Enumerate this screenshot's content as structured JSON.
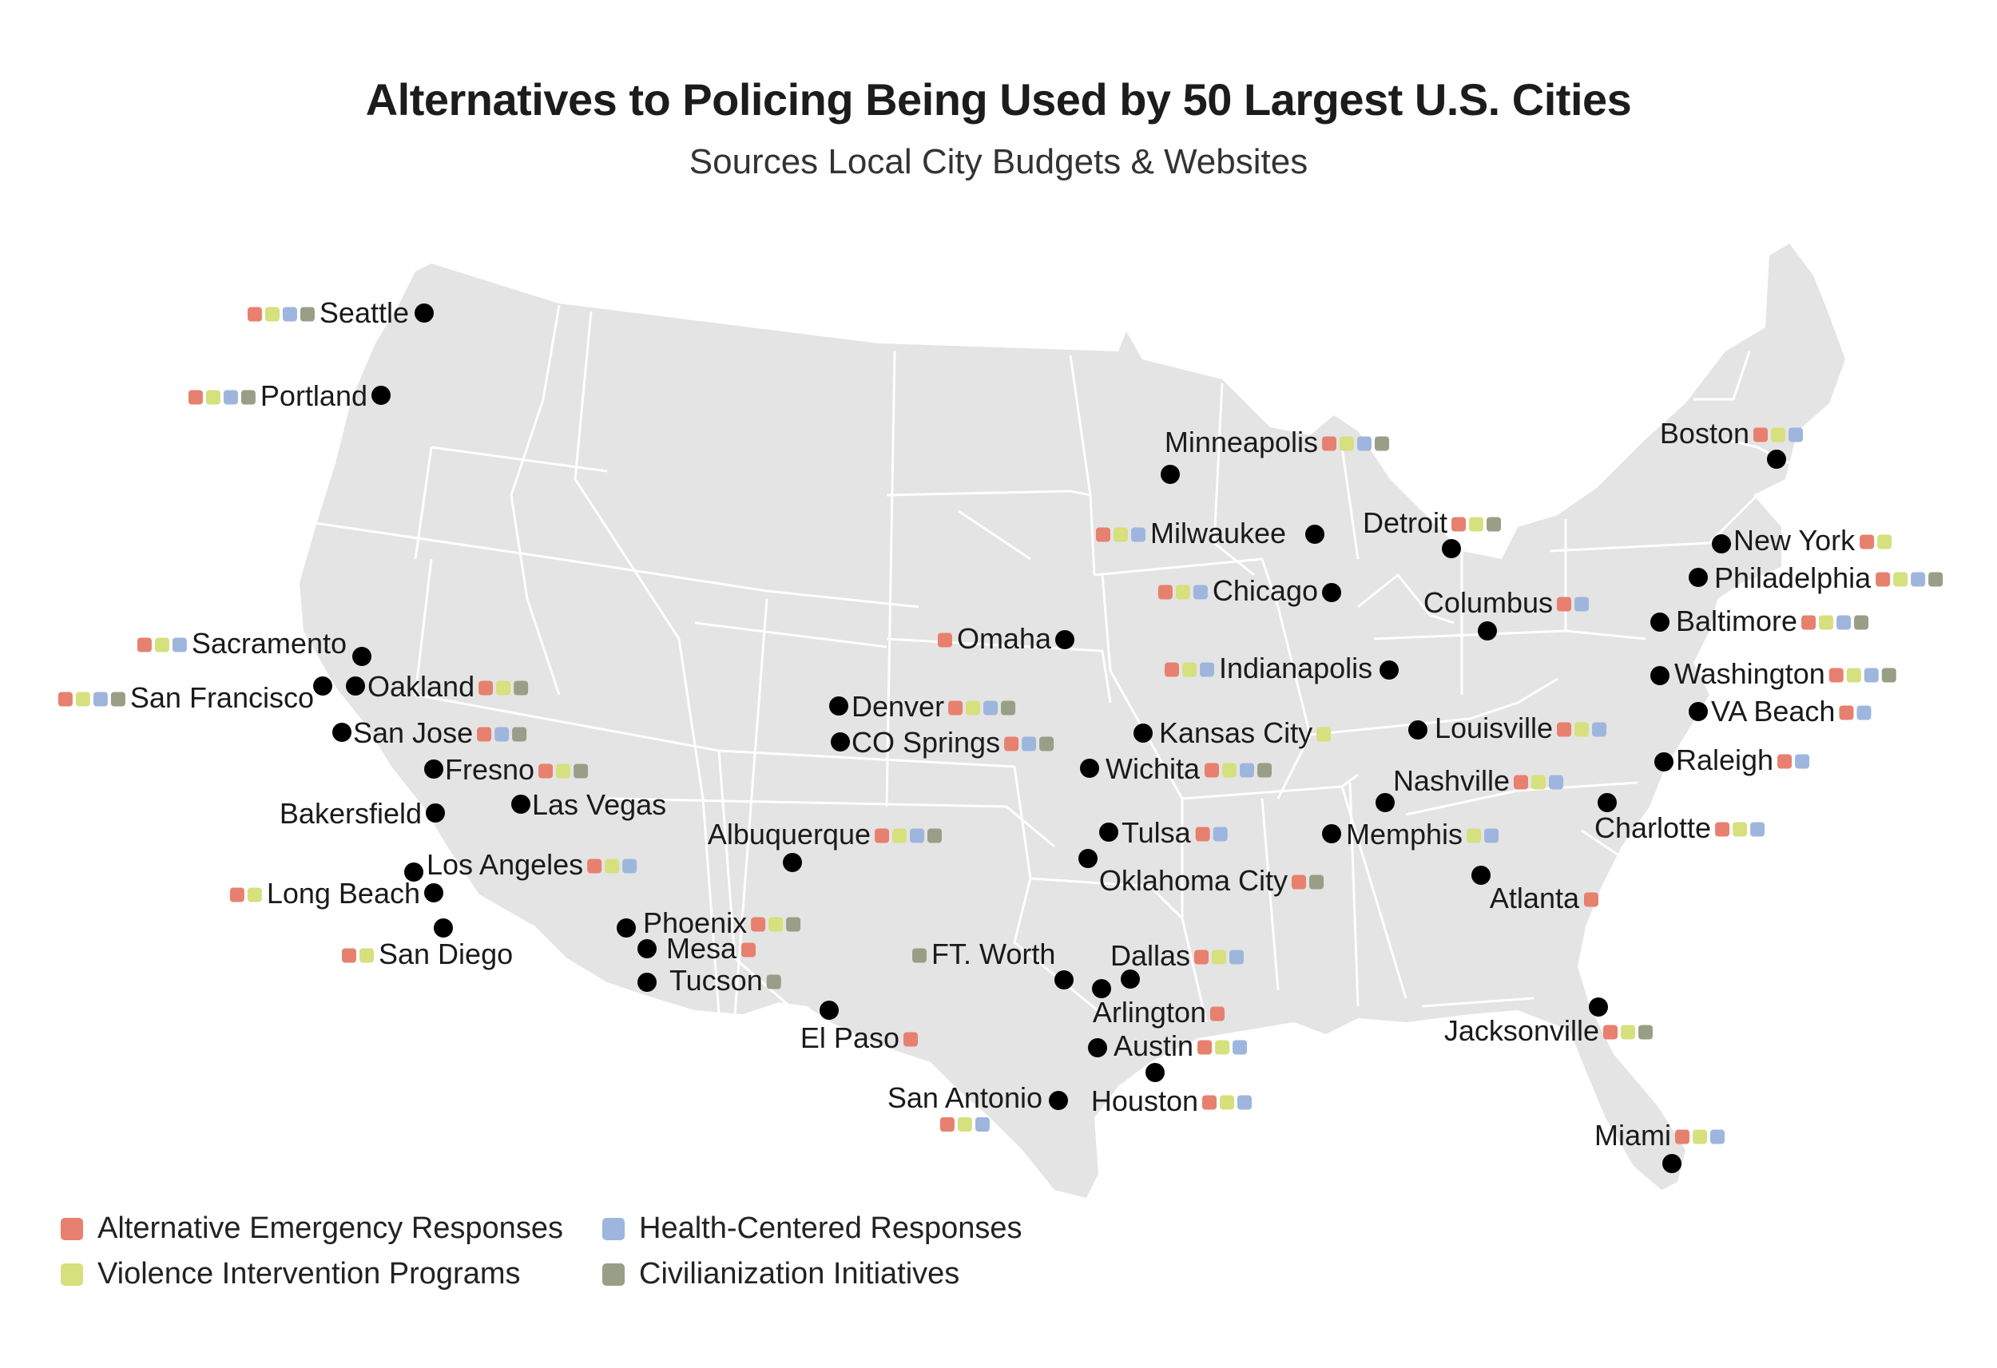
{
  "title": "Alternatives to Policing Being Used by 50 Largest U.S. Cities",
  "subtitle": "Sources Local City Budgets & Websites",
  "colors": {
    "AER": "#e8806f",
    "VIP": "#d6e07d",
    "HCR": "#9eb6de",
    "CIV": "#999e86",
    "land": "#e4e4e4",
    "border": "#ffffff",
    "dot": "#000000"
  },
  "legend": [
    {
      "key": "AER",
      "label": "Alternative Emergency Responses"
    },
    {
      "key": "VIP",
      "label": "Violence Intervention Programs"
    },
    {
      "key": "HCR",
      "label": "Health-Centered Responses"
    },
    {
      "key": "CIV",
      "label": "Civilianization Initiatives"
    }
  ],
  "cities": [
    {
      "name": "Seattle",
      "programs": [
        "AER",
        "VIP",
        "HCR",
        "CIV"
      ]
    },
    {
      "name": "Portland",
      "programs": [
        "AER",
        "VIP",
        "HCR",
        "CIV"
      ]
    },
    {
      "name": "Sacramento",
      "programs": [
        "AER",
        "VIP",
        "HCR"
      ]
    },
    {
      "name": "San Francisco",
      "programs": [
        "AER",
        "VIP",
        "HCR",
        "CIV"
      ]
    },
    {
      "name": "Oakland",
      "programs": [
        "AER",
        "VIP",
        "CIV"
      ]
    },
    {
      "name": "San Jose",
      "programs": [
        "AER",
        "HCR",
        "CIV"
      ]
    },
    {
      "name": "Fresno",
      "programs": [
        "AER",
        "VIP",
        "CIV"
      ]
    },
    {
      "name": "Bakersfield",
      "programs": []
    },
    {
      "name": "Las Vegas",
      "programs": []
    },
    {
      "name": "Los Angeles",
      "programs": [
        "AER",
        "VIP",
        "HCR"
      ]
    },
    {
      "name": "Long Beach",
      "programs": [
        "AER",
        "VIP"
      ]
    },
    {
      "name": "San Diego",
      "programs": [
        "AER",
        "VIP"
      ]
    },
    {
      "name": "Phoenix",
      "programs": [
        "AER",
        "VIP",
        "CIV"
      ]
    },
    {
      "name": "Mesa",
      "programs": [
        "AER"
      ]
    },
    {
      "name": "Tucson",
      "programs": [
        "CIV"
      ]
    },
    {
      "name": "Albuquerque",
      "programs": [
        "AER",
        "VIP",
        "HCR",
        "CIV"
      ]
    },
    {
      "name": "El Paso",
      "programs": [
        "AER"
      ]
    },
    {
      "name": "Denver",
      "programs": [
        "AER",
        "VIP",
        "HCR",
        "CIV"
      ]
    },
    {
      "name": "CO Springs",
      "programs": [
        "AER",
        "HCR",
        "CIV"
      ]
    },
    {
      "name": "Omaha",
      "programs": [
        "AER"
      ]
    },
    {
      "name": "Kansas City",
      "programs": [
        "VIP"
      ]
    },
    {
      "name": "Wichita",
      "programs": [
        "AER",
        "VIP",
        "HCR",
        "CIV"
      ]
    },
    {
      "name": "Tulsa",
      "programs": [
        "AER",
        "HCR"
      ]
    },
    {
      "name": "Oklahoma City",
      "programs": [
        "AER",
        "CIV"
      ]
    },
    {
      "name": "FT. Worth",
      "programs": [
        "CIV"
      ]
    },
    {
      "name": "Dallas",
      "programs": [
        "AER",
        "VIP",
        "HCR"
      ]
    },
    {
      "name": "Arlington",
      "programs": [
        "AER"
      ]
    },
    {
      "name": "Austin",
      "programs": [
        "AER",
        "VIP",
        "HCR"
      ]
    },
    {
      "name": "San Antonio",
      "programs": [
        "AER",
        "VIP",
        "HCR"
      ]
    },
    {
      "name": "Houston",
      "programs": [
        "AER",
        "VIP",
        "HCR"
      ]
    },
    {
      "name": "Minneapolis",
      "programs": [
        "AER",
        "VIP",
        "HCR",
        "CIV"
      ]
    },
    {
      "name": "Milwaukee",
      "programs": [
        "AER",
        "VIP",
        "HCR"
      ]
    },
    {
      "name": "Chicago",
      "programs": [
        "AER",
        "VIP",
        "HCR"
      ]
    },
    {
      "name": "Indianapolis",
      "programs": [
        "AER",
        "VIP",
        "HCR"
      ]
    },
    {
      "name": "Detroit",
      "programs": [
        "AER",
        "VIP",
        "CIV"
      ]
    },
    {
      "name": "Columbus",
      "programs": [
        "AER",
        "HCR"
      ]
    },
    {
      "name": "Louisville",
      "programs": [
        "AER",
        "VIP",
        "HCR"
      ]
    },
    {
      "name": "Nashville",
      "programs": [
        "AER",
        "VIP",
        "HCR"
      ]
    },
    {
      "name": "Memphis",
      "programs": [
        "VIP",
        "HCR"
      ]
    },
    {
      "name": "Atlanta",
      "programs": [
        "AER"
      ]
    },
    {
      "name": "Jacksonville",
      "programs": [
        "AER",
        "VIP",
        "CIV"
      ]
    },
    {
      "name": "Miami",
      "programs": [
        "AER",
        "VIP",
        "HCR"
      ]
    },
    {
      "name": "Charlotte",
      "programs": [
        "AER",
        "VIP",
        "HCR"
      ]
    },
    {
      "name": "Raleigh",
      "programs": [
        "AER",
        "HCR"
      ]
    },
    {
      "name": "VA Beach",
      "programs": [
        "AER",
        "HCR"
      ]
    },
    {
      "name": "Washington",
      "programs": [
        "AER",
        "VIP",
        "HCR",
        "CIV"
      ]
    },
    {
      "name": "Baltimore",
      "programs": [
        "AER",
        "VIP",
        "HCR",
        "CIV"
      ]
    },
    {
      "name": "Philadelphia",
      "programs": [
        "AER",
        "VIP",
        "HCR",
        "CIV"
      ]
    },
    {
      "name": "New York",
      "programs": [
        "AER",
        "VIP"
      ]
    },
    {
      "name": "Boston",
      "programs": [
        "AER",
        "VIP",
        "HCR"
      ]
    }
  ]
}
